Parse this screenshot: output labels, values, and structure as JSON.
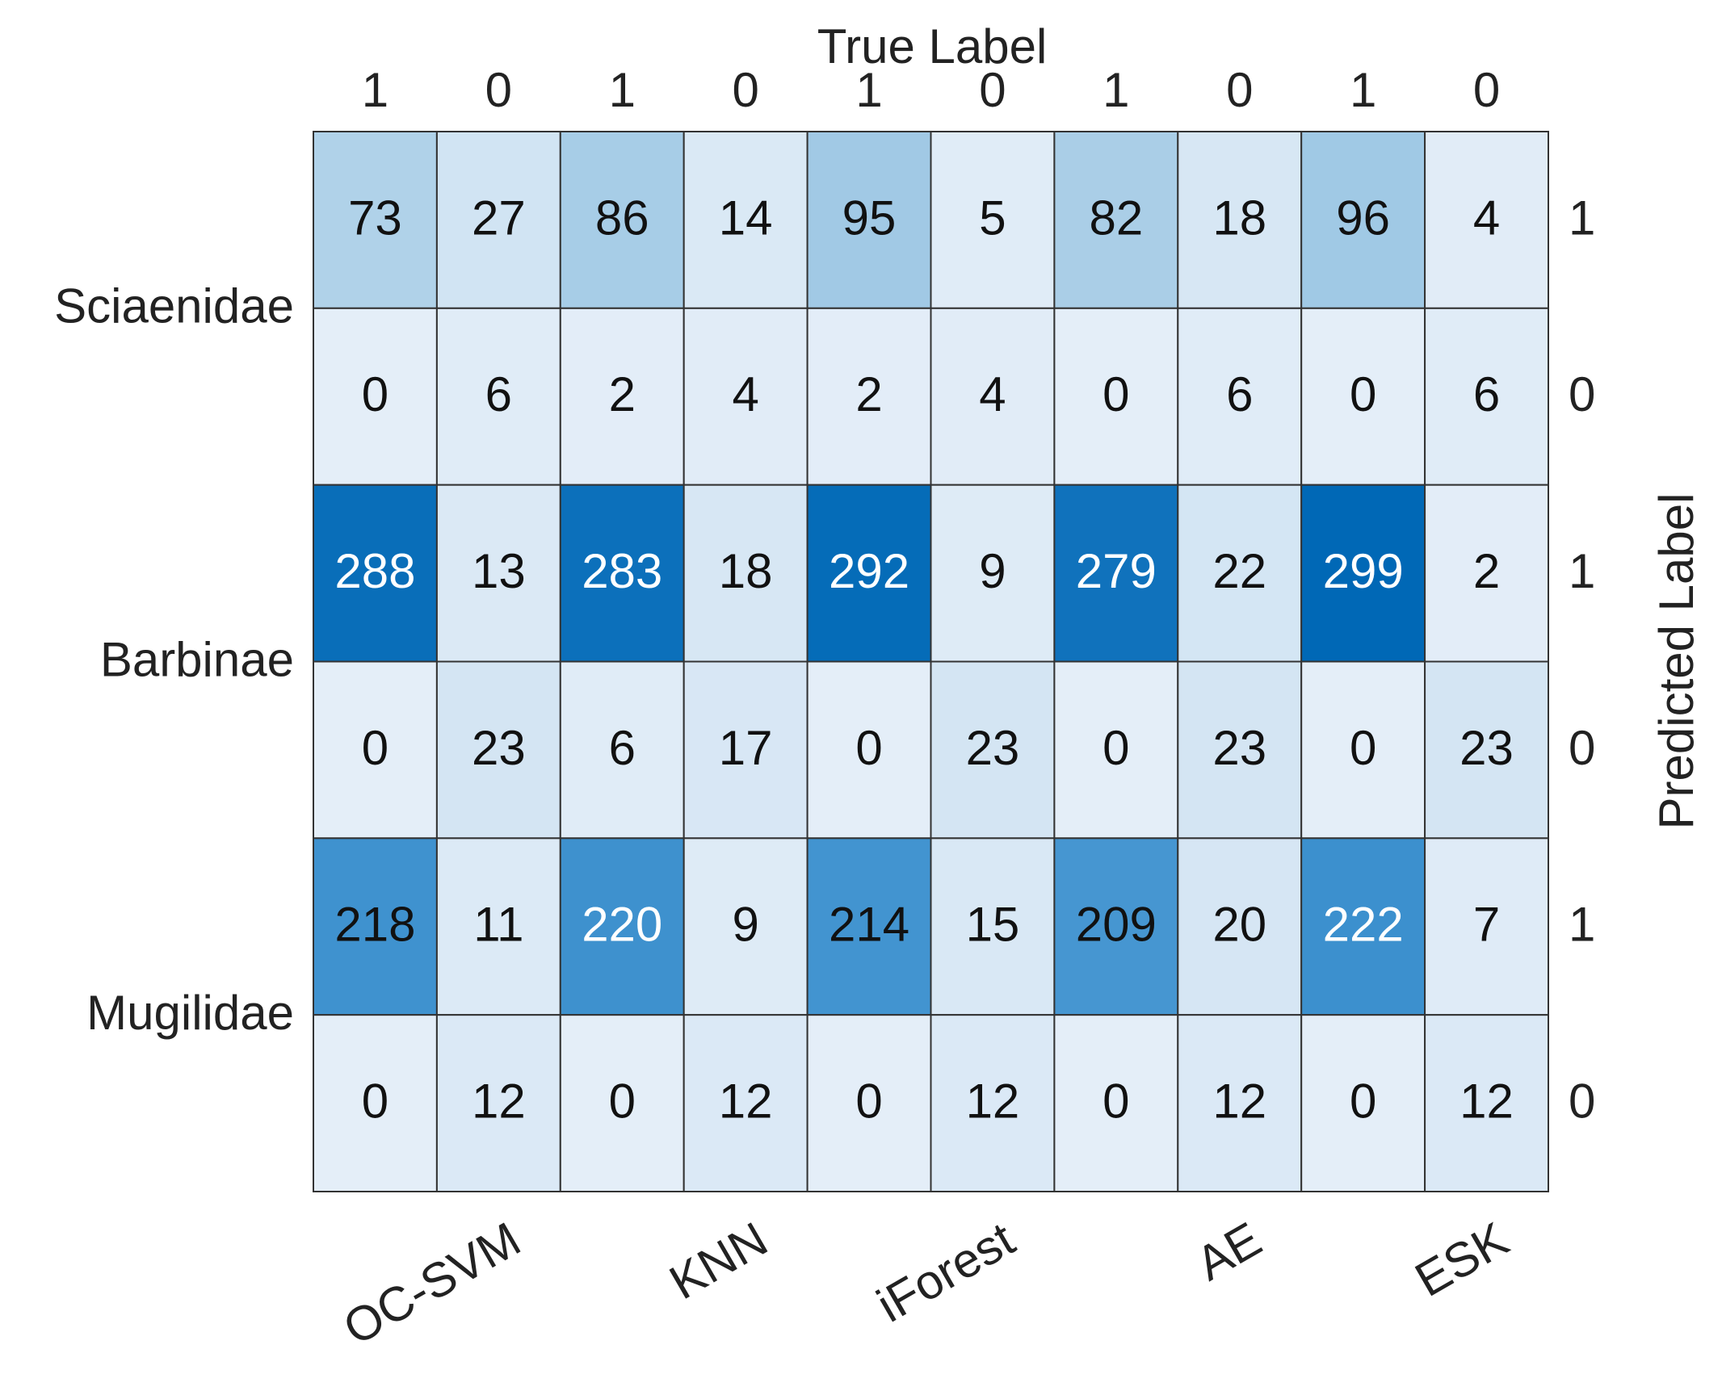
{
  "chart_data": {
    "type": "heatmap",
    "x_label": "True Label",
    "y_label": "Predicted Label",
    "x_categories": [
      "1",
      "0",
      "1",
      "0",
      "1",
      "0",
      "1",
      "0",
      "1",
      "0"
    ],
    "column_groups": [
      "OC-SVM",
      "KNN",
      "iForest",
      "AE",
      "ESK"
    ],
    "y_categories": [
      "1",
      "0",
      "1",
      "0",
      "1",
      "0"
    ],
    "row_groups": [
      "Sciaenidae",
      "Barbinae",
      "Mugilidae"
    ],
    "values": [
      [
        73,
        27,
        86,
        14,
        95,
        5,
        82,
        18,
        96,
        4
      ],
      [
        0,
        6,
        2,
        4,
        2,
        4,
        0,
        6,
        0,
        6
      ],
      [
        288,
        13,
        283,
        18,
        292,
        9,
        279,
        22,
        299,
        2
      ],
      [
        0,
        23,
        6,
        17,
        0,
        23,
        0,
        23,
        0,
        23
      ],
      [
        218,
        11,
        220,
        9,
        214,
        15,
        209,
        20,
        222,
        7
      ],
      [
        0,
        12,
        0,
        12,
        0,
        12,
        0,
        12,
        0,
        12
      ]
    ]
  }
}
